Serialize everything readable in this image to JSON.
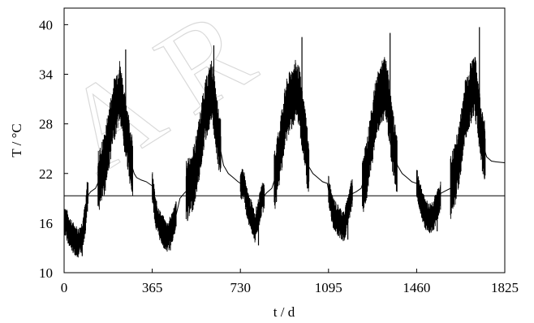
{
  "watermark": "A R",
  "chart_data": {
    "type": "line",
    "title": "",
    "xlabel": "t / d",
    "ylabel": "T / °C",
    "xlim": [
      0,
      1825
    ],
    "ylim": [
      10,
      42
    ],
    "xticks": [
      0,
      365,
      730,
      1095,
      1460,
      1825
    ],
    "xtick_labels": [
      "0",
      "365",
      "730",
      "1095",
      "1460",
      "1825"
    ],
    "yticks": [
      10,
      16,
      22,
      28,
      34,
      40
    ],
    "ytick_labels": [
      "10",
      "16",
      "22",
      "28",
      "34",
      "40"
    ],
    "grid": false,
    "legend": "none",
    "series": [
      {
        "style": "solid thin black",
        "x": [
          0,
          30,
          60,
          75,
          90,
          95,
          110,
          130,
          150,
          170,
          190,
          205,
          220,
          230,
          240,
          250,
          260,
          270,
          280,
          290,
          300,
          320,
          340,
          365,
          380,
          400,
          420,
          430,
          440,
          460,
          480,
          500,
          520,
          540,
          560,
          580,
          600,
          610,
          620,
          630,
          640,
          660,
          680,
          700,
          720,
          745,
          760,
          780,
          790,
          800,
          820,
          840,
          860,
          880,
          900,
          920,
          940,
          960,
          975,
          985,
          1000,
          1010,
          1030,
          1050,
          1070,
          1090,
          1110,
          1130,
          1160,
          1175,
          1190,
          1210,
          1230,
          1250,
          1270,
          1290,
          1310,
          1330,
          1340,
          1350,
          1360,
          1380,
          1400,
          1420,
          1440,
          1460,
          1490,
          1510,
          1530,
          1550,
          1560,
          1580,
          1600,
          1620,
          1640,
          1660,
          1680,
          1700,
          1710,
          1720,
          1730,
          1750,
          1770,
          1790,
          1825
        ],
        "y": [
          16.5,
          14.5,
          13.5,
          14.5,
          17,
          19.2,
          19.8,
          20.2,
          21.5,
          23.5,
          27,
          29.5,
          31,
          32,
          30.5,
          28,
          27,
          25,
          23,
          22,
          21.5,
          21.2,
          21,
          20.5,
          17,
          15.5,
          14.5,
          14.3,
          15,
          16.5,
          19,
          19.7,
          20.2,
          22,
          25,
          29,
          31,
          32,
          30.5,
          28,
          26,
          23,
          22,
          21.5,
          21,
          20.5,
          18,
          16.5,
          15.5,
          16.5,
          19,
          19.7,
          20.2,
          22,
          26,
          29.5,
          31,
          32,
          31,
          28.5,
          26,
          23,
          22,
          21.5,
          21,
          20.8,
          17.5,
          16.5,
          15.5,
          17.5,
          19.5,
          19.8,
          20.2,
          22,
          25.5,
          29.5,
          31.5,
          32.5,
          31,
          28.5,
          26,
          23,
          22,
          21.5,
          21,
          20.8,
          17.5,
          16.5,
          17,
          18.5,
          19.6,
          19.9,
          20.2,
          22,
          25,
          29.5,
          31.5,
          32.8,
          31,
          28.5,
          26,
          24,
          23.5,
          23.4,
          23.3
        ],
        "peaks": [
          {
            "x": 255,
            "y": 37
          },
          {
            "x": 620,
            "y": 37.5
          },
          {
            "x": 985,
            "y": 38.5
          },
          {
            "x": 1350,
            "y": 39
          },
          {
            "x": 1720,
            "y": 39.7
          }
        ],
        "troughs": [
          {
            "x": 75,
            "y": 12
          },
          {
            "x": 440,
            "y": 12.7
          },
          {
            "x": 805,
            "y": 13.3
          },
          {
            "x": 1175,
            "y": 14
          },
          {
            "x": 1545,
            "y": 15
          }
        ]
      },
      {
        "style": "solid thin black",
        "x": [
          0,
          1825
        ],
        "y": [
          19.3,
          19.3
        ]
      }
    ]
  }
}
